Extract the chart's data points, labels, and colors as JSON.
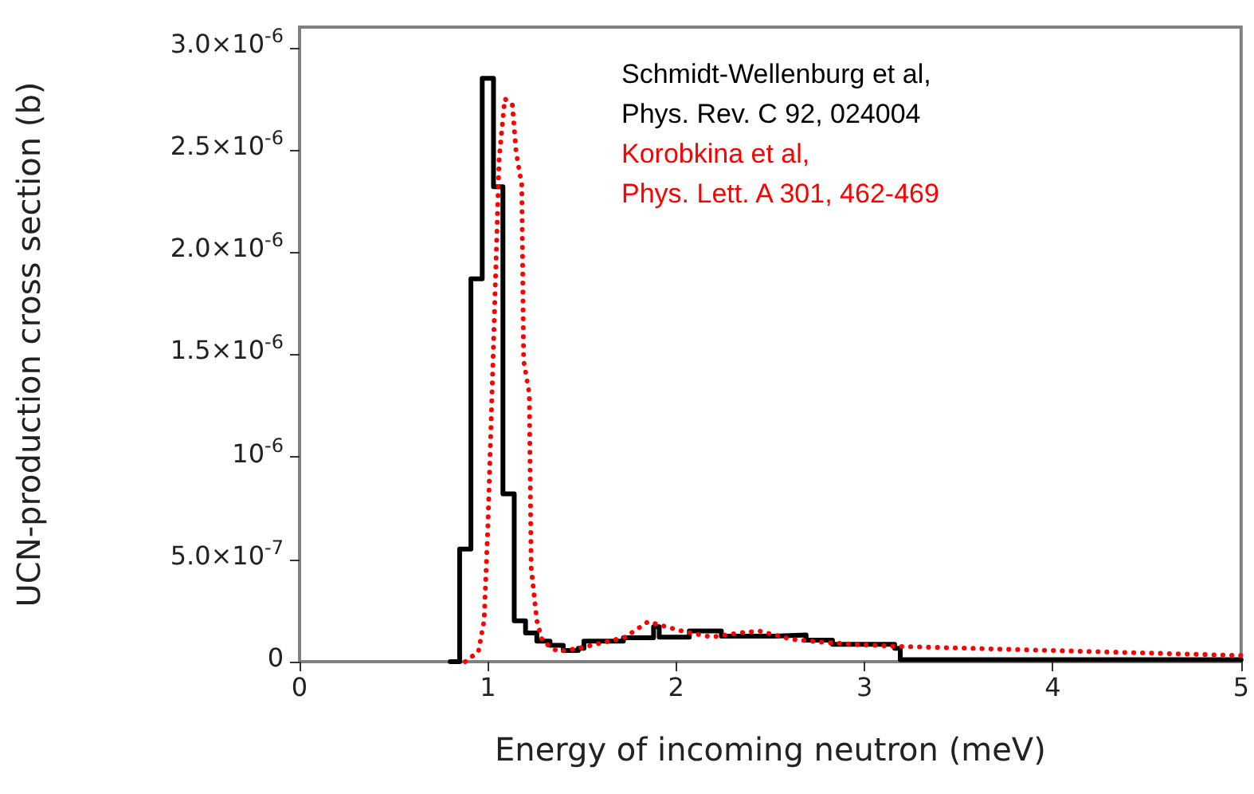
{
  "chart_data": {
    "type": "line",
    "xlabel": "Energy of incoming neutron (meV)",
    "ylabel": "UCN-production cross section (b)",
    "xlim": [
      0,
      5
    ],
    "xticks": [
      0,
      1,
      2,
      3,
      4,
      5
    ],
    "ylim": [
      0,
      3.1e-06
    ],
    "yticks": [
      0,
      {
        "value": 5e-07,
        "label": "5.0×10$^{-7}$"
      },
      {
        "value": 1e-06,
        "label": "10$^{-6}$"
      },
      {
        "value": 1.5e-06,
        "label": "1.5×10$^{-6}$"
      },
      {
        "value": 2e-06,
        "label": "2.0×10$^{-6}$"
      },
      {
        "value": 2.5e-06,
        "label": "2.5×10$^{-6}$"
      },
      {
        "value": 3e-06,
        "label": "3.0×10$^{-6}$"
      }
    ],
    "grid": false,
    "legend": "top right",
    "marker": "none",
    "series": [
      {
        "name": "Schmidt-Wellenburg et al,\nPhys. Rev. C 92, 024004",
        "type": "step",
        "color": "#000000",
        "line_style": "solid",
        "x": [
          0.8,
          0.85,
          0.91,
          0.97,
          1.03,
          1.08,
          1.14,
          1.2,
          1.26,
          1.33,
          1.4,
          1.48,
          1.51,
          1.72,
          1.88,
          1.91,
          2.07,
          2.24,
          2.52,
          2.69,
          2.83,
          3.16,
          3.19,
          5.0
        ],
        "values": [
          0,
          5.5e-07,
          1.87e-06,
          2.85e-06,
          2.32e-06,
          8.2e-07,
          2e-07,
          1.4e-07,
          1e-07,
          8e-08,
          5.5e-08,
          6.5e-08,
          1e-07,
          1.17e-07,
          1.7e-07,
          1.2e-07,
          1.5e-07,
          1.25e-07,
          1.3e-07,
          1.05e-07,
          8.5e-08,
          6.5e-08,
          1e-08,
          1e-08
        ]
      },
      {
        "name": "Korobkina et al,\nPhys. Lett. A 301, 462-469",
        "color": "#ff0000",
        "line_style": "dotted",
        "x": [
          0.88,
          0.95,
          0.98,
          1.0,
          1.03,
          1.06,
          1.09,
          1.13,
          1.15,
          1.18,
          1.19,
          1.22,
          1.23,
          1.26,
          1.29,
          1.37,
          1.48,
          1.62,
          1.73,
          1.85,
          1.93,
          2.05,
          2.19,
          2.33,
          2.44,
          2.61,
          2.78,
          2.94,
          3.17,
          3.98,
          5.0
        ],
        "values": [
          0,
          5e-08,
          2e-07,
          6.6e-07,
          1.55e-06,
          2.46e-06,
          2.75e-06,
          2.72e-06,
          2.49e-06,
          2.33e-06,
          1.47e-06,
          1.31e-06,
          4.6e-07,
          2e-07,
          1e-07,
          5e-08,
          6.5e-08,
          9.5e-08,
          1.2e-07,
          1.95e-07,
          1.75e-07,
          1.45e-07,
          1.2e-07,
          1.4e-07,
          1.5e-07,
          1.1e-07,
          9.5e-08,
          8.5e-08,
          7.5e-08,
          5.5e-08,
          3e-08
        ]
      }
    ]
  }
}
